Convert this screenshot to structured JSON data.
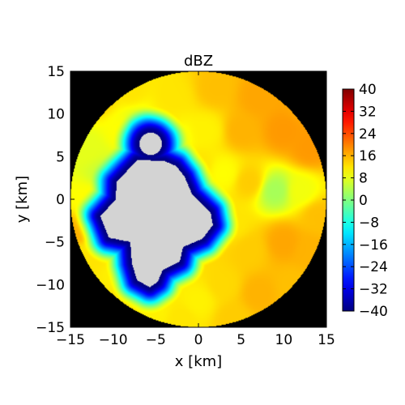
{
  "chart_data": {
    "type": "heatmap",
    "title": "dBZ",
    "xlabel": "x [km]",
    "ylabel": "y [km]",
    "xlim": [
      -15,
      15
    ],
    "ylim": [
      -15,
      15
    ],
    "x_ticks": [
      -15,
      -10,
      -5,
      0,
      5,
      10,
      15
    ],
    "y_ticks": [
      -15,
      -10,
      -5,
      0,
      5,
      10,
      15
    ],
    "x_tick_labels": [
      "−15",
      "−10",
      "−5",
      "0",
      "5",
      "10",
      "15"
    ],
    "y_tick_labels": [
      "−15",
      "−10",
      "−5",
      "0",
      "5",
      "10",
      "15"
    ],
    "domain_radius_km": 15,
    "outside_domain_color": "#000000",
    "masked_region_color": "#d3d3d3",
    "colorbar": {
      "min": -40,
      "max": 40,
      "ticks": [
        -40,
        -32,
        -24,
        -16,
        -8,
        0,
        8,
        16,
        24,
        32,
        40
      ],
      "tick_labels": [
        "−40",
        "−32",
        "−24",
        "−16",
        "−8",
        "0",
        "8",
        "16",
        "24",
        "32",
        "40"
      ],
      "colormap": "jet",
      "placement": "right"
    },
    "field_description": "reflectivity mostly 10-18 dBZ with a blob of about 3 dBZ near (9, 1) km; values drop to about -40 dBZ at the edge of the masked region",
    "masked_region": {
      "main": [
        [
          -4,
          4.5
        ],
        [
          -7.2,
          4.6
        ],
        [
          -9.6,
          2
        ],
        [
          -9.7,
          0
        ],
        [
          -11.5,
          -2
        ],
        [
          -10.5,
          -4.5
        ],
        [
          -8,
          -5
        ],
        [
          -7.8,
          -7.5
        ],
        [
          -7.2,
          -9.5
        ],
        [
          -5.7,
          -10.3
        ],
        [
          -4.8,
          -9.7
        ],
        [
          -4.2,
          -8.3
        ],
        [
          -2.2,
          -7.3
        ],
        [
          -1.8,
          -5.6
        ],
        [
          0.5,
          -4.6
        ],
        [
          1.7,
          -3
        ],
        [
          1.4,
          -1.5
        ],
        [
          -0.7,
          0.5
        ],
        [
          -1.6,
          2.6
        ],
        [
          -2.6,
          3.9
        ]
      ],
      "lobe_center": [
        -5.6,
        6.5
      ],
      "lobe_radius": 1.3
    },
    "field_points": [
      [
        -12,
        12,
        14
      ],
      [
        -8,
        13,
        12
      ],
      [
        -3,
        12,
        12
      ],
      [
        2,
        13,
        15
      ],
      [
        7,
        12,
        17
      ],
      [
        12,
        11,
        17
      ],
      [
        -13,
        6,
        8
      ],
      [
        -9,
        8,
        10
      ],
      [
        -4,
        9,
        12
      ],
      [
        1,
        8,
        11
      ],
      [
        5,
        8,
        16
      ],
      [
        10,
        8,
        18
      ],
      [
        13,
        6,
        18
      ],
      [
        -13,
        0,
        10
      ],
      [
        -11,
        3,
        6
      ],
      [
        3,
        3,
        10
      ],
      [
        6,
        2,
        14
      ],
      [
        9,
        1,
        3
      ],
      [
        12,
        1,
        9
      ],
      [
        14,
        -2,
        15
      ],
      [
        -13,
        -6,
        12
      ],
      [
        -9,
        -9,
        11
      ],
      [
        4,
        -3,
        12
      ],
      [
        6,
        -6,
        14
      ],
      [
        10,
        -5,
        17
      ],
      [
        13,
        -6,
        16
      ],
      [
        -10,
        -12,
        12
      ],
      [
        -5,
        -13,
        11
      ],
      [
        0,
        -12,
        11
      ],
      [
        3,
        -10,
        13
      ],
      [
        7,
        -11,
        16
      ],
      [
        11,
        -10,
        15
      ],
      [
        -2,
        -14,
        12
      ],
      [
        4,
        -14,
        14
      ],
      [
        -14,
        -4,
        16
      ],
      [
        0,
        4,
        12
      ],
      [
        -3,
        7,
        8
      ],
      [
        -7,
        8.5,
        6
      ]
    ]
  }
}
